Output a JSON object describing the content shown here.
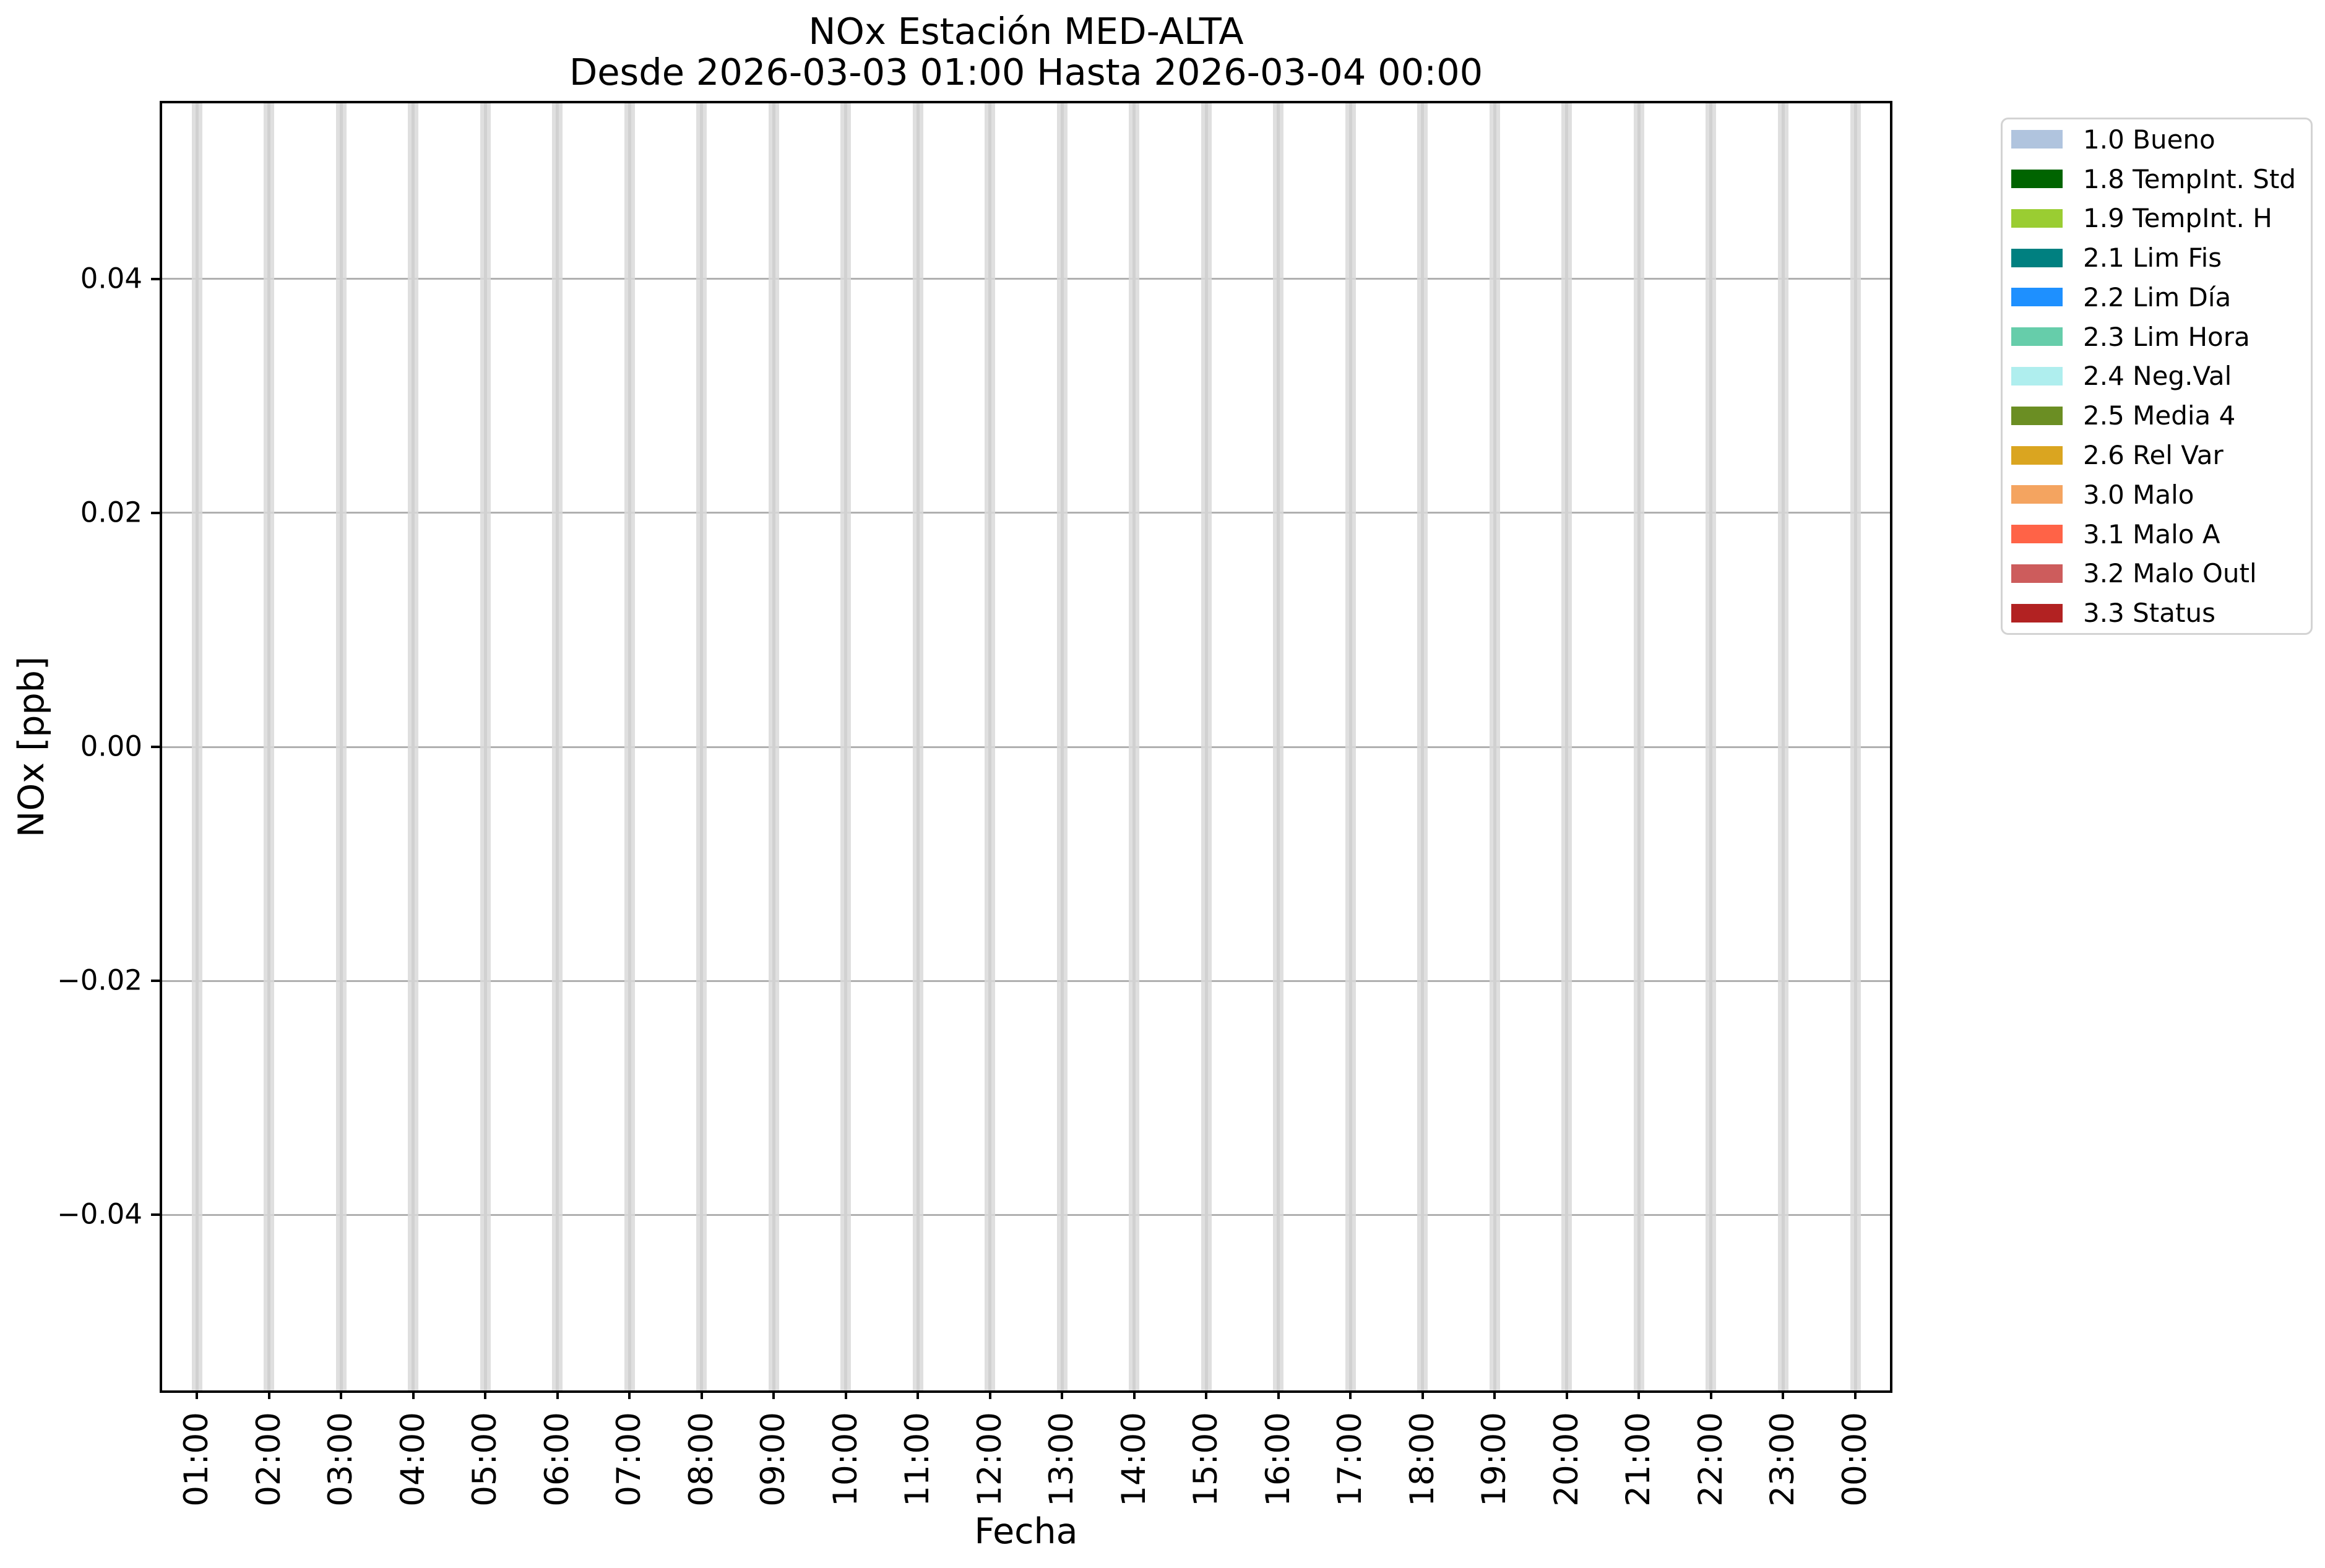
{
  "chart_data": {
    "type": "bar",
    "title": "NOx Estación MED-ALTA",
    "subtitle": "Desde 2026-03-03 01:00 Hasta 2026-03-04 00:00",
    "xlabel": "Fecha",
    "ylabel": "NOx [ppb]",
    "categories": [
      "01:00",
      "02:00",
      "03:00",
      "04:00",
      "05:00",
      "06:00",
      "07:00",
      "08:00",
      "09:00",
      "10:00",
      "11:00",
      "12:00",
      "13:00",
      "14:00",
      "15:00",
      "16:00",
      "17:00",
      "18:00",
      "19:00",
      "20:00",
      "21:00",
      "22:00",
      "23:00",
      "00:00"
    ],
    "series": [],
    "values": [
      null,
      null,
      null,
      null,
      null,
      null,
      null,
      null,
      null,
      null,
      null,
      null,
      null,
      null,
      null,
      null,
      null,
      null,
      null,
      null,
      null,
      null,
      null,
      null
    ],
    "no_data_bars": {
      "full_height": true,
      "at_every_hour": true,
      "color": "#d9d9d9",
      "opacity": 0.85
    },
    "ylim": [
      -0.055,
      0.055
    ],
    "yticks": [
      0.04,
      0.02,
      0.0,
      -0.02,
      -0.04
    ],
    "ytick_labels": [
      "0.04",
      "0.02",
      "0.00",
      "−0.02",
      "−0.04"
    ],
    "xtick_rotation_deg": 90,
    "grid": true,
    "grid_color": "#b0b0b0",
    "vertical_grid_color": "#a0a0a0",
    "spine_color": "#000000",
    "background_color": "#ffffff",
    "legend": {
      "position": "outside-right",
      "border_color": "#d3d3d3",
      "entries": [
        {
          "label": "1.0 Bueno",
          "color": "#b0c4de"
        },
        {
          "label": "1.8 TempInt. Std",
          "color": "#006400"
        },
        {
          "label": "1.9 TempInt. H",
          "color": "#9acd32"
        },
        {
          "label": "2.1 Lim Fis",
          "color": "#008080"
        },
        {
          "label": "2.2 Lim Día",
          "color": "#1e90ff"
        },
        {
          "label": "2.3 Lim Hora",
          "color": "#66cdaa"
        },
        {
          "label": "2.4 Neg.Val",
          "color": "#afeeee"
        },
        {
          "label": "2.5 Media 4",
          "color": "#6b8e23"
        },
        {
          "label": "2.6 Rel Var",
          "color": "#daa520"
        },
        {
          "label": "3.0 Malo",
          "color": "#f4a460"
        },
        {
          "label": "3.1 Malo A",
          "color": "#ff6347"
        },
        {
          "label": "3.2 Malo Outl",
          "color": "#cd5c5c"
        },
        {
          "label": "3.3 Status",
          "color": "#b22222"
        }
      ]
    }
  }
}
